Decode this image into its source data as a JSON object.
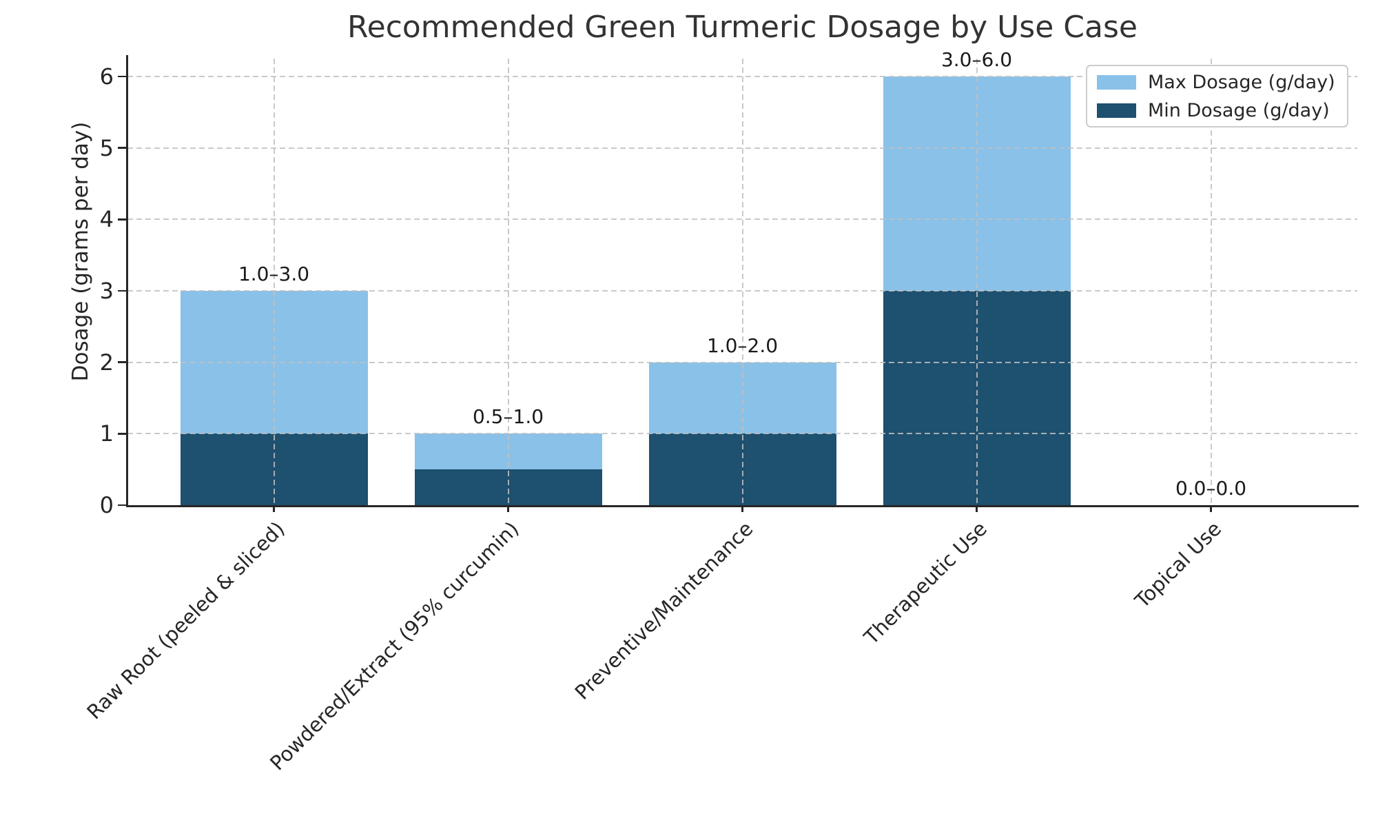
{
  "chart_data": {
    "type": "bar",
    "stacked": true,
    "title": "Recommended Green Turmeric Dosage by Use Case",
    "xlabel": "",
    "ylabel": "Dosage (grams per day)",
    "categories": [
      "Raw Root (peeled & sliced)",
      "Powdered/Extract (95% curcumin)",
      "Preventive/Maintenance",
      "Therapeutic Use",
      "Topical Use"
    ],
    "series": [
      {
        "name": "Min Dosage (g/day)",
        "color": "#1e506f",
        "values": [
          1.0,
          0.5,
          1.0,
          3.0,
          0.0
        ]
      },
      {
        "name": "Max Dosage (g/day)",
        "color": "#89c1e8",
        "values": [
          3.0,
          1.0,
          2.0,
          6.0,
          0.0
        ]
      }
    ],
    "annotations": [
      "1.0–3.0",
      "0.5–1.0",
      "1.0–2.0",
      "3.0–6.0",
      "0.0–0.0"
    ],
    "ylim": [
      0,
      6.25
    ],
    "yticks": [
      0,
      1,
      2,
      3,
      4,
      5,
      6
    ],
    "grid": true,
    "grid_style": "dashed",
    "legend": {
      "position": "upper right",
      "entries": [
        {
          "label": "Max Dosage (g/day)",
          "color": "#89c1e8"
        },
        {
          "label": "Min Dosage (g/day)",
          "color": "#1e506f"
        }
      ]
    },
    "colors": {
      "max_bar": "#89c1e8",
      "min_bar": "#1e506f",
      "spine": "#262626",
      "gridline": "#c0c0c0",
      "title_text": "#333333"
    }
  }
}
